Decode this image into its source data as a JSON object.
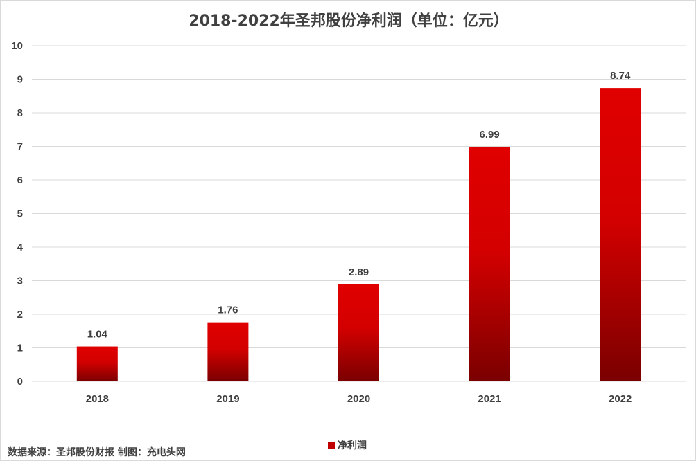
{
  "chart_data": {
    "type": "bar",
    "title": "2018-2022年圣邦股份净利润（单位：亿元）",
    "categories": [
      "2018",
      "2019",
      "2020",
      "2021",
      "2022"
    ],
    "series": [
      {
        "name": "净利润",
        "values": [
          1.04,
          1.76,
          2.89,
          6.99,
          8.74
        ],
        "data_labels": [
          "1.04",
          "1.76",
          "2.89",
          "6.99",
          "8.74"
        ]
      }
    ],
    "y_ticks": [
      "0",
      "1",
      "2",
      "3",
      "4",
      "5",
      "6",
      "7",
      "8",
      "9",
      "10"
    ],
    "ylim": [
      0,
      10
    ],
    "grid": true,
    "legend_position": "bottom"
  },
  "colors": {
    "bar_top": "#e00000",
    "bar_bottom": "#7a0000",
    "gridline": "#d9d9d9",
    "text": "#404040",
    "legend_swatch": "#c00000"
  },
  "source_note": "数据来源：圣邦股份财报 制图：充电头网"
}
